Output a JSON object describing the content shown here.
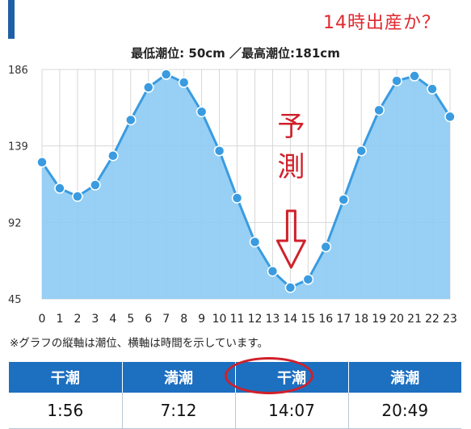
{
  "header": {
    "annotation": "14時出産か？"
  },
  "subtitle": "最低潮位: 50cm ／最高潮位:181cm",
  "chart_data": {
    "type": "area",
    "x": [
      0,
      1,
      2,
      3,
      4,
      5,
      6,
      7,
      8,
      9,
      10,
      11,
      12,
      13,
      14,
      15,
      16,
      17,
      18,
      19,
      20,
      21,
      22,
      23
    ],
    "series": [
      {
        "values": [
          129,
          113,
          108,
          115,
          133,
          155,
          175,
          183,
          178,
          160,
          136,
          107,
          80,
          62,
          52,
          57,
          77,
          106,
          136,
          161,
          179,
          182,
          174,
          157
        ]
      }
    ],
    "yticks": [
      45,
      92,
      139,
      186
    ],
    "ylim": [
      45,
      186
    ],
    "xlim": [
      0,
      23
    ],
    "grid": true,
    "annotation_text": [
      "予",
      "測"
    ],
    "colors": {
      "area_fill": "#8ccbf3",
      "line": "#3a9be0",
      "marker": "#3a9be0",
      "annotation": "#d0202a",
      "grid": "#d7d7d7"
    }
  },
  "note": "※グラフの縦軸は潮位、横軸は時間を示しています。",
  "tide_table": {
    "headers": [
      "干潮",
      "満潮",
      "干潮",
      "満潮"
    ],
    "times": [
      "1:56",
      "7:12",
      "14:07",
      "20:49"
    ]
  }
}
